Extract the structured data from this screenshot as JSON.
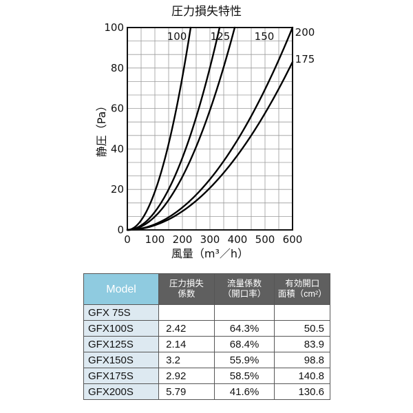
{
  "chart_data": {
    "type": "line",
    "title": "圧力損失特性",
    "xlabel": "風量（m³／h）",
    "ylabel": "静圧（Pa）",
    "xlim": [
      0,
      600
    ],
    "ylim": [
      0,
      100
    ],
    "x_ticks": [
      "0",
      "100",
      "200",
      "300",
      "400",
      "500",
      "600"
    ],
    "y_ticks": [
      "0",
      "20",
      "40",
      "60",
      "80",
      "100"
    ],
    "grid": true,
    "series": [
      {
        "name": "100",
        "x": [
          0,
          50,
          100,
          150,
          200,
          230
        ],
        "y": [
          0,
          3.9,
          15.5,
          34.9,
          62.0,
          100
        ]
      },
      {
        "name": "125",
        "x": [
          0,
          50,
          100,
          150,
          200,
          250,
          300,
          335
        ],
        "y": [
          0,
          2.4,
          9.7,
          21.9,
          38.9,
          60.8,
          87.6,
          100
        ]
      },
      {
        "name": "150",
        "x": [
          0,
          50,
          100,
          150,
          200,
          250,
          300,
          350,
          390
        ],
        "y": [
          0,
          1.6,
          6.6,
          14.8,
          26.3,
          41.1,
          59.2,
          80.5,
          100
        ]
      },
      {
        "name": "175",
        "x": [
          0,
          100,
          200,
          300,
          400,
          500,
          600
        ],
        "y": [
          0,
          2.3,
          9.2,
          20.8,
          36.9,
          57.7,
          83.0
        ]
      },
      {
        "name": "200",
        "x": [
          0,
          100,
          200,
          300,
          400,
          500,
          600
        ],
        "y": [
          0,
          2.8,
          11.1,
          25.0,
          44.4,
          69.4,
          100
        ]
      }
    ]
  },
  "table": {
    "headers": [
      "Model",
      "圧力損失\n係数",
      "流量係数\n（開口率）",
      "有効開口\n面積（cm²）"
    ],
    "rows": [
      [
        "GFX  75S",
        "",
        "",
        ""
      ],
      [
        "GFX100S",
        "2.42",
        "64.3%",
        "50.5"
      ],
      [
        "GFX125S",
        "2.14",
        "68.4%",
        "83.9"
      ],
      [
        "GFX150S",
        "3.2",
        "55.9%",
        "98.8"
      ],
      [
        "GFX175S",
        "2.92",
        "58.5%",
        "140.8"
      ],
      [
        "GFX200S",
        "5.79",
        "41.6%",
        "130.6"
      ]
    ]
  },
  "colors": {
    "table_model_header": "#8fcbe0",
    "table_header": "#5f5f5f",
    "table_model_cell": "#dde9f1",
    "grid": "#9a9a9a",
    "curve": "#000000"
  }
}
